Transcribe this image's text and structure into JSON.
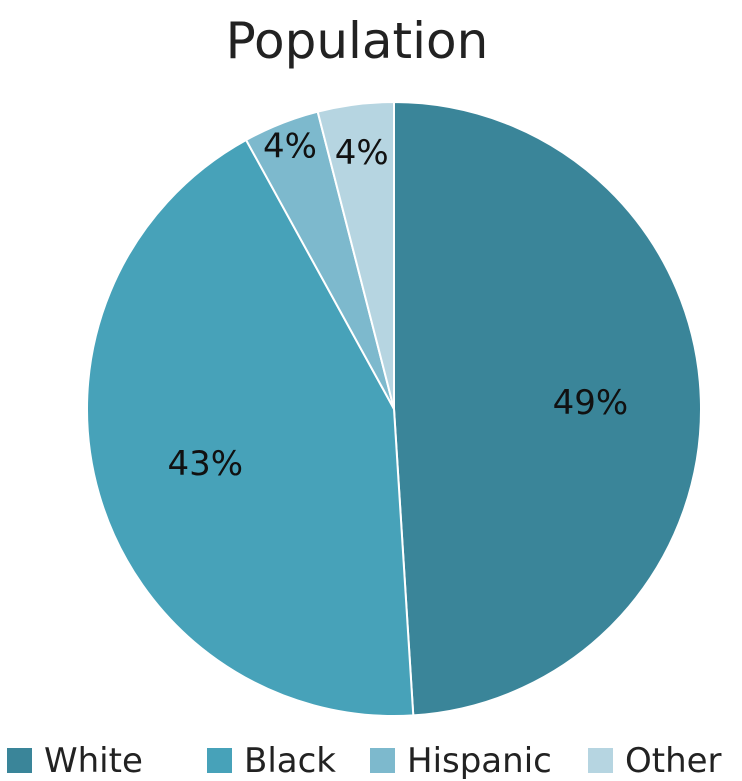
{
  "chart_data": {
    "type": "pie",
    "title": "Population",
    "categories": [
      "White",
      "Black",
      "Hispanic",
      "Other"
    ],
    "values": [
      49,
      43,
      4,
      4
    ],
    "labels": [
      "49%",
      "43%",
      "4%",
      "4%"
    ],
    "colors": [
      "#3A8599",
      "#47A2B9",
      "#7DB9CD",
      "#B6D5E1"
    ],
    "start_angle_deg": 0,
    "direction": "clockwise",
    "legend": "bottom"
  }
}
